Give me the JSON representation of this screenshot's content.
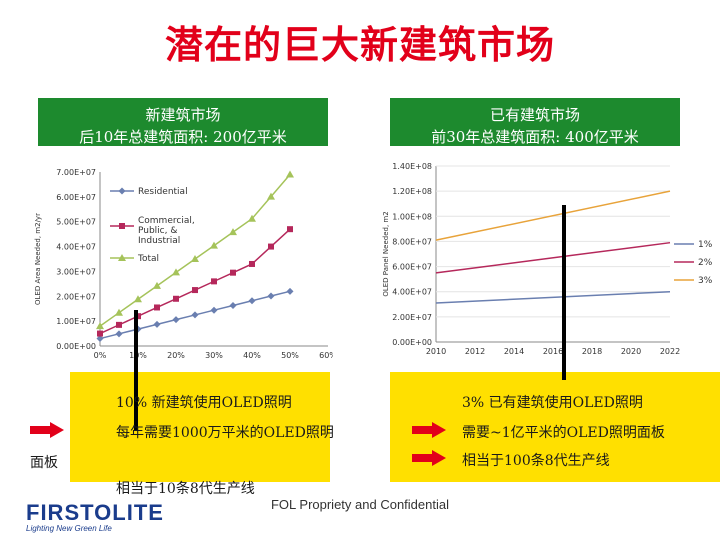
{
  "title": "潜在的巨大新建筑市场",
  "left_box": {
    "line1": "新建筑市场",
    "line2": "后10年总建筑面积: 200亿平米"
  },
  "right_box": {
    "line1": "已有建筑市场",
    "line2": "前30年总建筑面积: 400亿平米"
  },
  "left_panel": {
    "line1": "10% 新建筑使用OLED照明",
    "line2": "每年需要1000万平米的OLED照明",
    "line2_cont": "面板",
    "line3": "相当于10条8代生产线"
  },
  "right_panel": {
    "line1": "3% 已有建筑使用OLED照明",
    "line2": "需要~1亿平米的OLED照明面板",
    "line3": "相当于100条8代生产线"
  },
  "footer": "FOL Propriety and Confidential",
  "logo": {
    "name": "FIRSTOLITE",
    "tagline": "Lighting New Green Life"
  },
  "colors": {
    "title": "#e2001a",
    "box": "#1d8a2e",
    "panel": "#ffe000",
    "arrow": "#e2001a"
  },
  "chart_data": [
    {
      "type": "line",
      "ylabel": "OLED Area Needed, m2/yr",
      "xlabel": "",
      "x": [
        0,
        5,
        10,
        15,
        20,
        25,
        30,
        35,
        40,
        45,
        50
      ],
      "x_ticks": [
        "0%",
        "10%",
        "20%",
        "30%",
        "40%",
        "50%",
        "60%"
      ],
      "y_ticks": [
        "0.00E+00",
        "1.00E+07",
        "2.00E+07",
        "3.00E+07",
        "4.00E+07",
        "5.00E+07",
        "6.00E+07",
        "7.00E+07"
      ],
      "xlim": [
        0,
        60
      ],
      "ylim": [
        0,
        70000000
      ],
      "series": [
        {
          "name": "Residential",
          "color": "#6a7fb0",
          "marker": "diamond",
          "values": [
            3000000,
            4900000,
            6800000,
            8700000,
            10600000,
            12500000,
            14400000,
            16300000,
            18200000,
            20100000,
            22000000
          ]
        },
        {
          "name": "Commercial, Public, & Industrial",
          "color": "#b5285b",
          "marker": "square",
          "values": [
            5000000,
            8500000,
            12000000,
            15500000,
            19000000,
            22500000,
            26000000,
            29500000,
            33000000,
            40000000,
            47000000
          ]
        },
        {
          "name": "Total",
          "color": "#a5c35a",
          "marker": "triangle",
          "values": [
            8000000,
            13400000,
            18800000,
            24200000,
            29600000,
            35000000,
            40400000,
            45800000,
            51200000,
            60100000,
            69000000
          ]
        }
      ]
    },
    {
      "type": "line",
      "ylabel": "OLED Panel Needed, m2",
      "xlabel": "",
      "x": [
        2010,
        2022
      ],
      "x_ticks": [
        "2010",
        "2012",
        "2014",
        "2016",
        "2018",
        "2020",
        "2022"
      ],
      "y_ticks": [
        "0.00E+00",
        "2.00E+07",
        "4.00E+07",
        "6.00E+07",
        "8.00E+07",
        "1.00E+08",
        "1.20E+08",
        "1.40E+08"
      ],
      "xlim": [
        2010,
        2022
      ],
      "ylim": [
        0,
        140000000
      ],
      "series": [
        {
          "name": "1%",
          "color": "#6a7fb0",
          "values": [
            31000000,
            40000000
          ]
        },
        {
          "name": "2%",
          "color": "#b5285b",
          "values": [
            55000000,
            79000000
          ]
        },
        {
          "name": "3%",
          "color": "#e8a33a",
          "values": [
            81000000,
            120000000
          ]
        }
      ]
    }
  ]
}
